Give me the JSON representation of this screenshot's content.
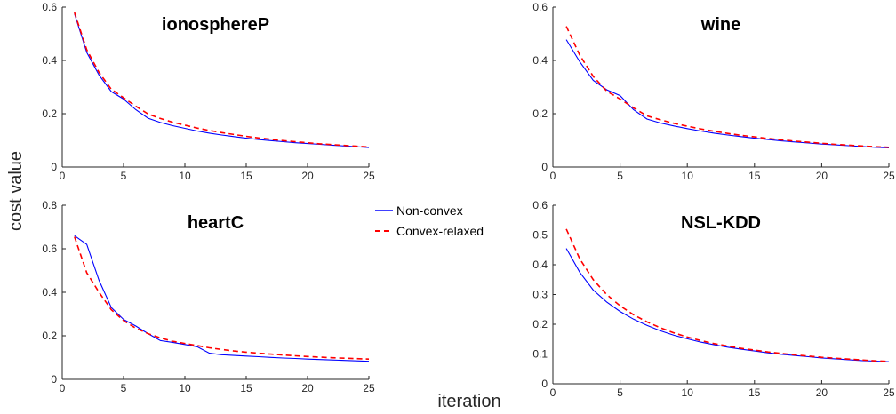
{
  "figure": {
    "ylabel": "cost value",
    "xlabel": "iteration"
  },
  "legend": {
    "placement": "center",
    "entries": [
      {
        "name": "Non-convex",
        "color": "#0000ff",
        "dash": "solid"
      },
      {
        "name": "Convex-relaxed",
        "color": "#ff0000",
        "dash": "dashed"
      }
    ]
  },
  "chart_data": [
    {
      "type": "line",
      "title": "ionosphereP",
      "xlim": [
        0,
        25
      ],
      "ylim": [
        0,
        0.6
      ],
      "xticks": [
        0,
        5,
        10,
        15,
        20,
        25
      ],
      "yticks": [
        0,
        0.2,
        0.4,
        0.6
      ],
      "ytick_labels": [
        "0",
        "0.2",
        "0.4",
        "0.6"
      ],
      "x": [
        1,
        2,
        3,
        4,
        5,
        6,
        7,
        8,
        9,
        10,
        11,
        12,
        13,
        14,
        15,
        16,
        17,
        18,
        19,
        20,
        21,
        22,
        23,
        24,
        25
      ],
      "series": [
        {
          "name": "Non-convex",
          "values": [
            0.575,
            0.43,
            0.345,
            0.283,
            0.255,
            0.215,
            0.183,
            0.167,
            0.155,
            0.145,
            0.135,
            0.127,
            0.12,
            0.114,
            0.108,
            0.103,
            0.099,
            0.095,
            0.091,
            0.088,
            0.085,
            0.082,
            0.079,
            0.076,
            0.073
          ]
        },
        {
          "name": "Convex-relaxed",
          "values": [
            0.58,
            0.44,
            0.355,
            0.292,
            0.26,
            0.228,
            0.199,
            0.182,
            0.168,
            0.157,
            0.146,
            0.137,
            0.129,
            0.122,
            0.115,
            0.109,
            0.104,
            0.099,
            0.095,
            0.091,
            0.087,
            0.084,
            0.081,
            0.078,
            0.075
          ]
        }
      ]
    },
    {
      "type": "line",
      "title": "wine",
      "xlim": [
        0,
        25
      ],
      "ylim": [
        0,
        0.6
      ],
      "xticks": [
        0,
        5,
        10,
        15,
        20,
        25
      ],
      "yticks": [
        0,
        0.2,
        0.4,
        0.6
      ],
      "ytick_labels": [
        "0",
        "0.2",
        "0.4",
        "0.6"
      ],
      "x": [
        1,
        2,
        3,
        4,
        5,
        6,
        7,
        8,
        9,
        10,
        11,
        12,
        13,
        14,
        15,
        16,
        17,
        18,
        19,
        20,
        21,
        22,
        23,
        24,
        25
      ],
      "series": [
        {
          "name": "Non-convex",
          "values": [
            0.478,
            0.395,
            0.325,
            0.29,
            0.268,
            0.215,
            0.18,
            0.165,
            0.154,
            0.144,
            0.135,
            0.127,
            0.12,
            0.114,
            0.108,
            0.103,
            0.098,
            0.094,
            0.09,
            0.086,
            0.083,
            0.08,
            0.077,
            0.074,
            0.072
          ]
        },
        {
          "name": "Convex-relaxed",
          "values": [
            0.528,
            0.42,
            0.34,
            0.285,
            0.255,
            0.222,
            0.192,
            0.177,
            0.164,
            0.153,
            0.143,
            0.134,
            0.126,
            0.119,
            0.113,
            0.107,
            0.102,
            0.097,
            0.093,
            0.089,
            0.085,
            0.082,
            0.079,
            0.076,
            0.074
          ]
        }
      ]
    },
    {
      "type": "line",
      "title": "heartC",
      "xlim": [
        0,
        25
      ],
      "ylim": [
        0,
        0.8
      ],
      "xticks": [
        0,
        5,
        10,
        15,
        20,
        25
      ],
      "yticks": [
        0,
        0.2,
        0.4,
        0.6,
        0.8
      ],
      "ytick_labels": [
        "0",
        "0.2",
        "0.4",
        "0.6",
        "0.8"
      ],
      "x": [
        1,
        2,
        3,
        4,
        5,
        6,
        7,
        8,
        9,
        10,
        11,
        12,
        13,
        14,
        15,
        16,
        17,
        18,
        19,
        20,
        21,
        22,
        23,
        24,
        25
      ],
      "series": [
        {
          "name": "Non-convex",
          "values": [
            0.66,
            0.62,
            0.455,
            0.33,
            0.275,
            0.245,
            0.21,
            0.178,
            0.17,
            0.16,
            0.15,
            0.12,
            0.113,
            0.11,
            0.107,
            0.104,
            0.101,
            0.098,
            0.096,
            0.093,
            0.091,
            0.089,
            0.087,
            0.085,
            0.083
          ]
        },
        {
          "name": "Convex-relaxed",
          "values": [
            0.655,
            0.49,
            0.4,
            0.32,
            0.27,
            0.235,
            0.21,
            0.19,
            0.175,
            0.165,
            0.155,
            0.145,
            0.137,
            0.13,
            0.125,
            0.12,
            0.116,
            0.112,
            0.108,
            0.105,
            0.102,
            0.099,
            0.097,
            0.095,
            0.093
          ]
        }
      ]
    },
    {
      "type": "line",
      "title": "NSL-KDD",
      "xlim": [
        0,
        25
      ],
      "ylim": [
        0,
        0.6
      ],
      "xticks": [
        0,
        5,
        10,
        15,
        20,
        25
      ],
      "yticks": [
        0,
        0.1,
        0.2,
        0.3,
        0.4,
        0.5,
        0.6
      ],
      "ytick_labels": [
        "0",
        "0.1",
        "0.2",
        "0.3",
        "0.4",
        "0.5",
        "0.6"
      ],
      "x": [
        1,
        2,
        3,
        4,
        5,
        6,
        7,
        8,
        9,
        10,
        11,
        12,
        13,
        14,
        15,
        16,
        17,
        18,
        19,
        20,
        21,
        22,
        23,
        24,
        25
      ],
      "series": [
        {
          "name": "Non-convex",
          "values": [
            0.455,
            0.375,
            0.315,
            0.275,
            0.243,
            0.217,
            0.196,
            0.178,
            0.163,
            0.151,
            0.14,
            0.131,
            0.123,
            0.116,
            0.11,
            0.104,
            0.099,
            0.095,
            0.091,
            0.087,
            0.084,
            0.081,
            0.078,
            0.076,
            0.074
          ]
        },
        {
          "name": "Convex-relaxed",
          "values": [
            0.52,
            0.42,
            0.35,
            0.3,
            0.262,
            0.232,
            0.208,
            0.188,
            0.171,
            0.157,
            0.145,
            0.135,
            0.127,
            0.119,
            0.113,
            0.107,
            0.102,
            0.097,
            0.093,
            0.089,
            0.086,
            0.083,
            0.08,
            0.077,
            0.075
          ]
        }
      ]
    }
  ]
}
